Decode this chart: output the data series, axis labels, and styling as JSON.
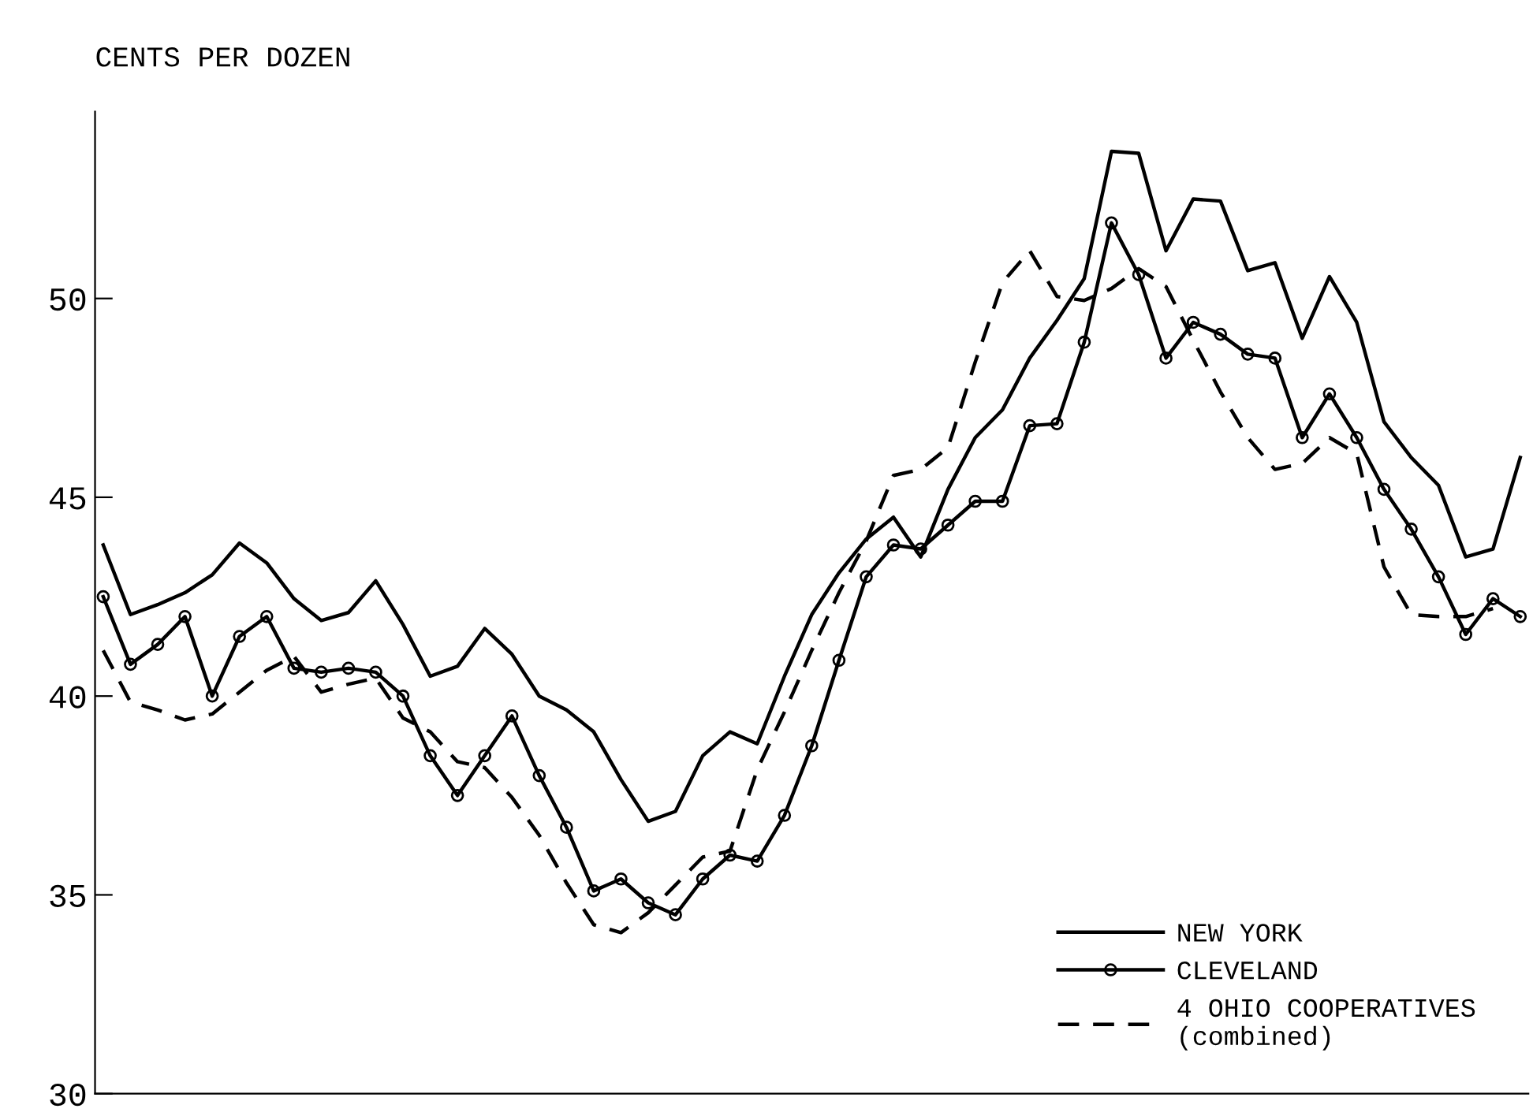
{
  "chart_data": {
    "type": "line",
    "ylabel": "CENTS PER DOZEN",
    "categories": [
      null,
      null,
      null,
      null,
      null,
      null,
      null,
      null,
      null,
      null,
      null,
      null,
      null,
      null,
      null,
      null,
      null,
      null,
      null,
      null,
      null,
      null,
      null,
      null,
      null,
      null,
      null,
      null,
      null,
      null,
      null,
      null,
      null,
      null,
      null,
      null,
      null,
      null,
      null,
      null,
      null,
      null,
      null,
      null,
      null,
      null,
      null,
      null,
      null,
      null,
      null,
      null,
      null
    ],
    "series": [
      {
        "name": "NEW YORK",
        "color": "#000000",
        "line_style": "solid",
        "marker": "none",
        "values": [
          43.8,
          42.05,
          42.3,
          42.6,
          43.05,
          43.85,
          43.35,
          42.45,
          41.9,
          42.1,
          42.9,
          41.8,
          40.5,
          40.75,
          41.7,
          41.05,
          40.0,
          39.65,
          39.1,
          37.9,
          36.85,
          37.1,
          38.5,
          39.1,
          38.8,
          40.5,
          42.05,
          43.1,
          43.95,
          44.5,
          43.5,
          45.2,
          46.5,
          47.2,
          48.5,
          49.45,
          50.5,
          53.7,
          53.65,
          51.2,
          52.5,
          52.45,
          50.7,
          50.9,
          49.0,
          50.55,
          49.4,
          46.9,
          46.0,
          45.3,
          43.5,
          43.7,
          46.0
        ]
      },
      {
        "name": "CLEVELAND",
        "color": "#000000",
        "line_style": "solid",
        "marker": "circle",
        "values": [
          42.5,
          40.8,
          41.3,
          42.0,
          40.0,
          41.5,
          42.0,
          40.7,
          40.6,
          40.7,
          40.6,
          40.0,
          38.5,
          37.5,
          38.5,
          39.5,
          38.0,
          36.7,
          35.1,
          35.4,
          34.8,
          34.5,
          35.4,
          36.0,
          35.85,
          37.0,
          38.75,
          40.9,
          43.0,
          43.8,
          43.7,
          44.3,
          44.9,
          44.9,
          46.8,
          46.85,
          48.9,
          51.9,
          50.6,
          48.5,
          49.4,
          49.1,
          48.6,
          48.5,
          46.5,
          47.6,
          46.5,
          45.2,
          44.2,
          43.0,
          41.55,
          42.45,
          42.0
        ]
      },
      {
        "name": "4 OHIO COOPERATIVES\n(combined)",
        "color": "#000000",
        "line_style": "dashed",
        "marker": "none",
        "values": [
          41.15,
          39.85,
          39.65,
          39.4,
          39.55,
          40.1,
          40.65,
          41.0,
          40.1,
          40.3,
          40.45,
          39.45,
          39.1,
          38.35,
          38.2,
          37.45,
          36.5,
          35.3,
          34.25,
          34.05,
          34.55,
          35.25,
          35.95,
          36.1,
          38.15,
          39.6,
          41.15,
          42.6,
          43.9,
          45.55,
          45.7,
          46.25,
          48.4,
          50.4,
          51.2,
          50.05,
          49.95,
          50.25,
          50.75,
          50.3,
          48.95,
          47.65,
          46.5,
          45.7,
          45.85,
          46.5,
          46.1,
          43.25,
          42.05,
          42.0,
          42.0,
          42.2,
          null
        ]
      }
    ],
    "ylim": [
      30,
      54.7
    ],
    "yticks": [
      30,
      35,
      40,
      45,
      50
    ],
    "grid": false,
    "legend": "bottom right"
  }
}
